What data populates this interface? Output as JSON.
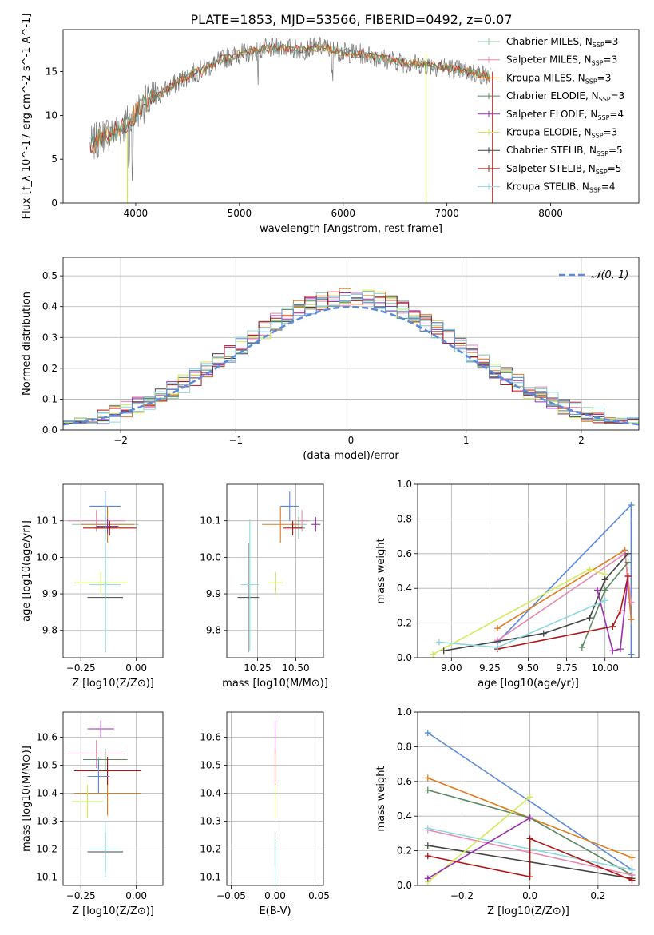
{
  "title": "PLATE=1853, MJD=53566, FIBERID=0492, z=0.07",
  "colors": {
    "Chabrier MILES": "#8fc9a8",
    "Salpeter MILES": "#e889b0",
    "Kroupa MILES": "#e07b1e",
    "Chabrier ELODIE": "#5a8a60",
    "Salpeter ELODIE": "#9b2fb0",
    "Kroupa ELODIE": "#d3ea5a",
    "Chabrier STELIB": "#444444",
    "Salpeter STELIB": "#b01515",
    "Kroupa STELIB": "#8cd8de",
    "Extra": "#5b8ad8"
  },
  "legend_labels": [
    "Chabrier MILES, N_SSP=3",
    "Salpeter MILES, N_SSP=3",
    "Kroupa MILES, N_SSP=3",
    "Chabrier ELODIE, N_SSP=3",
    "Salpeter ELODIE, N_SSP=4",
    "Kroupa ELODIE, N_SSP=3",
    "Chabrier STELIB, N_SSP=5",
    "Salpeter STELIB, N_SSP=5",
    "Kroupa STELIB, N_SSP=4"
  ],
  "chart_data": [
    {
      "id": "spectrum",
      "type": "line",
      "xlabel": "wavelength [Angstrom, rest frame]",
      "ylabel": "Flux [f_λ 10^-17 erg cm^-2 s^-1 A^-1]",
      "xlim": [
        3300,
        8850
      ],
      "ylim": [
        0,
        19.8
      ],
      "xticks": [
        4000,
        5000,
        6000,
        7000,
        8000
      ],
      "yticks": [
        0,
        5,
        10,
        15
      ],
      "legend_position": "upper right",
      "grid": false,
      "continuum_x": [
        3560,
        3700,
        3850,
        3950,
        4050,
        4300,
        4500,
        4700,
        4850,
        5000,
        5200,
        5400,
        5600,
        5800,
        6000,
        6200,
        6400,
        6600,
        6800,
        7000,
        7200,
        7400
      ],
      "continuum_y": [
        6.5,
        7.8,
        8.5,
        9.5,
        11,
        13,
        14.5,
        15.5,
        16.5,
        17,
        17.5,
        17.8,
        17.5,
        17.8,
        17.2,
        17.0,
        16.5,
        16.0,
        15.8,
        15.5,
        15.0,
        14.5
      ]
    },
    {
      "id": "residuals",
      "type": "line",
      "xlabel": "(data-model)/error",
      "ylabel": "Normed distribution",
      "xlim": [
        -2.5,
        2.5
      ],
      "ylim": [
        0,
        0.56
      ],
      "xticks": [
        -2,
        -1,
        0,
        1,
        2
      ],
      "yticks": [
        0.0,
        0.1,
        0.2,
        0.3,
        0.4,
        0.5
      ],
      "grid": true,
      "legend": "𝒩(0, 1)",
      "bins": [
        -2.5,
        2.5,
        50
      ],
      "reference_curve": "normal(0,1)"
    },
    {
      "id": "Z_vs_age",
      "type": "scatter",
      "xlabel": "Z [log10(Z/Z⊙)]",
      "ylabel": "age [log10(age/yr)]",
      "xlim": [
        -0.33,
        0.12
      ],
      "ylim": [
        9.725,
        10.2
      ],
      "xticks": [
        -0.25,
        0.0
      ],
      "yticks": [
        9.8,
        9.9,
        10.0,
        10.1
      ],
      "grid": true,
      "points": [
        {
          "model": "Chabrier MILES",
          "x": -0.14,
          "y": 10.09,
          "xerr": 0.15,
          "yerr": 0.04
        },
        {
          "model": "Salpeter MILES",
          "x": -0.18,
          "y": 10.1,
          "xerr": 0.13,
          "yerr": 0.03
        },
        {
          "model": "Kroupa MILES",
          "x": -0.13,
          "y": 10.09,
          "xerr": 0.12,
          "yerr": 0.05
        },
        {
          "model": "Chabrier ELODIE",
          "x": -0.14,
          "y": 10.08,
          "xerr": 0.05,
          "yerr": 0.03
        },
        {
          "model": "Salpeter ELODIE",
          "x": -0.13,
          "y": 10.085,
          "xerr": 0.05,
          "yerr": 0.02
        },
        {
          "model": "Kroupa ELODIE",
          "x": -0.16,
          "y": 9.93,
          "xerr": 0.12,
          "yerr": 0.03
        },
        {
          "model": "Chabrier STELIB",
          "x": -0.14,
          "y": 9.89,
          "xerr": 0.08,
          "yerr": 0.15
        },
        {
          "model": "Salpeter STELIB",
          "x": -0.12,
          "y": 10.08,
          "xerr": 0.12,
          "yerr": 0.02
        },
        {
          "model": "Kroupa STELIB",
          "x": -0.14,
          "y": 9.925,
          "xerr": 0.07,
          "yerr": 0.18
        },
        {
          "model": "Extra",
          "x": -0.14,
          "y": 10.14,
          "xerr": 0.07,
          "yerr": 0.04
        }
      ]
    },
    {
      "id": "mass_vs_age",
      "type": "scatter",
      "xlabel": "mass [log10(M/M⊙)]",
      "ylabel": "",
      "xlim": [
        10.05,
        10.68
      ],
      "ylim": [
        9.725,
        10.2
      ],
      "xticks": [
        10.25,
        10.5
      ],
      "yticks": [
        9.8,
        9.9,
        10.0,
        10.1
      ],
      "grid": true,
      "points": [
        {
          "model": "Chabrier MILES",
          "x": 10.52,
          "y": 10.09,
          "xerr": 0.05,
          "yerr": 0.04
        },
        {
          "model": "Salpeter MILES",
          "x": 10.54,
          "y": 10.1,
          "xerr": 0.05,
          "yerr": 0.03
        },
        {
          "model": "Kroupa MILES",
          "x": 10.4,
          "y": 10.09,
          "xerr": 0.12,
          "yerr": 0.05
        },
        {
          "model": "Chabrier ELODIE",
          "x": 10.52,
          "y": 10.08,
          "xerr": 0.04,
          "yerr": 0.03
        },
        {
          "model": "Salpeter ELODIE",
          "x": 10.63,
          "y": 10.09,
          "xerr": 0.03,
          "yerr": 0.02
        },
        {
          "model": "Kroupa ELODIE",
          "x": 10.37,
          "y": 9.93,
          "xerr": 0.05,
          "yerr": 0.03
        },
        {
          "model": "Chabrier STELIB",
          "x": 10.19,
          "y": 9.89,
          "xerr": 0.07,
          "yerr": 0.15
        },
        {
          "model": "Salpeter STELIB",
          "x": 10.48,
          "y": 10.08,
          "xerr": 0.06,
          "yerr": 0.02
        },
        {
          "model": "Kroupa STELIB",
          "x": 10.2,
          "y": 9.925,
          "xerr": 0.06,
          "yerr": 0.18
        },
        {
          "model": "Extra",
          "x": 10.46,
          "y": 10.14,
          "xerr": 0.06,
          "yerr": 0.04
        }
      ]
    },
    {
      "id": "age_weights",
      "type": "line",
      "xlabel": "age [log10(age/yr)]",
      "ylabel": "mass weight",
      "xlim": [
        8.78,
        10.22
      ],
      "ylim": [
        0,
        1.0
      ],
      "xticks": [
        9.0,
        9.25,
        9.5,
        9.75,
        10.0
      ],
      "yticks": [
        0.0,
        0.2,
        0.4,
        0.6,
        0.8,
        1.0
      ],
      "grid": true,
      "series": [
        {
          "model": "Extra",
          "x": [
            9.3,
            10.17,
            10.17
          ],
          "y": [
            0.09,
            0.88,
            0.02
          ]
        },
        {
          "model": "Kroupa MILES",
          "x": [
            9.3,
            10.13,
            10.17
          ],
          "y": [
            0.17,
            0.62,
            0.22
          ]
        },
        {
          "model": "Salpeter MILES",
          "x": [
            9.3,
            10.13,
            10.17
          ],
          "y": [
            0.1,
            0.6,
            0.32
          ]
        },
        {
          "model": "Kroupa ELODIE",
          "x": [
            8.88,
            9.9,
            10.0
          ],
          "y": [
            0.02,
            0.51,
            0.48
          ]
        },
        {
          "model": "Chabrier ELODIE",
          "x": [
            9.85,
            10.0,
            10.15
          ],
          "y": [
            0.06,
            0.39,
            0.55
          ]
        },
        {
          "model": "Chabrier STELIB",
          "x": [
            8.95,
            9.6,
            9.9,
            10.0,
            10.15
          ],
          "y": [
            0.04,
            0.14,
            0.23,
            0.45,
            0.6
          ]
        },
        {
          "model": "Salpeter ELODIE",
          "x": [
            9.95,
            10.05,
            10.1,
            10.15
          ],
          "y": [
            0.39,
            0.04,
            0.05,
            0.47
          ]
        },
        {
          "model": "Salpeter STELIB",
          "x": [
            9.3,
            10.05,
            10.1,
            10.15
          ],
          "y": [
            0.05,
            0.18,
            0.27,
            0.47
          ]
        },
        {
          "model": "Kroupa STELIB",
          "x": [
            8.92,
            9.3,
            10.0
          ],
          "y": [
            0.09,
            0.06,
            0.33
          ]
        }
      ]
    },
    {
      "id": "Z_vs_mass",
      "type": "scatter",
      "xlabel": "Z [log10(Z/Z⊙)]",
      "ylabel": "mass [log10(M/M⊙)]",
      "xlim": [
        -0.33,
        0.12
      ],
      "ylim": [
        10.07,
        10.69
      ],
      "xticks": [
        -0.25,
        0.0
      ],
      "yticks": [
        10.1,
        10.2,
        10.3,
        10.4,
        10.5,
        10.6
      ],
      "grid": true,
      "points": [
        {
          "model": "Chabrier MILES",
          "x": -0.17,
          "y": 10.48,
          "xerr": 0.05,
          "yerr": 0.05
        },
        {
          "model": "Salpeter MILES",
          "x": -0.18,
          "y": 10.54,
          "xerr": 0.13,
          "yerr": 0.05
        },
        {
          "model": "Kroupa MILES",
          "x": -0.13,
          "y": 10.4,
          "xerr": 0.15,
          "yerr": 0.08
        },
        {
          "model": "Chabrier ELODIE",
          "x": -0.14,
          "y": 10.52,
          "xerr": 0.1,
          "yerr": 0.04
        },
        {
          "model": "Salpeter ELODIE",
          "x": -0.16,
          "y": 10.63,
          "xerr": 0.06,
          "yerr": 0.03
        },
        {
          "model": "Kroupa ELODIE",
          "x": -0.22,
          "y": 10.37,
          "xerr": 0.07,
          "yerr": 0.06
        },
        {
          "model": "Chabrier STELIB",
          "x": -0.14,
          "y": 10.19,
          "xerr": 0.08,
          "yerr": 0.07
        },
        {
          "model": "Salpeter STELIB",
          "x": -0.13,
          "y": 10.48,
          "xerr": 0.15,
          "yerr": 0.05
        },
        {
          "model": "Kroupa STELIB",
          "x": -0.14,
          "y": 10.2,
          "xerr": 0.07,
          "yerr": 0.1
        },
        {
          "model": "Extra",
          "x": -0.17,
          "y": 10.46,
          "xerr": 0.05,
          "yerr": 0.06
        }
      ]
    },
    {
      "id": "ebv_vs_mass",
      "type": "scatter",
      "xlabel": "E(B-V)",
      "ylabel": "",
      "xlim": [
        -0.055,
        0.055
      ],
      "ylim": [
        10.07,
        10.69
      ],
      "xticks": [
        -0.05,
        0.0,
        0.05
      ],
      "yticks": [
        10.1,
        10.2,
        10.3,
        10.4,
        10.5,
        10.6
      ],
      "grid": true,
      "points": [
        {
          "model": "Salpeter ELODIE",
          "x": 0.0,
          "y": 10.6,
          "xerr": 0.0,
          "yerr": 0.06
        },
        {
          "model": "Salpeter STELIB",
          "x": 0.0,
          "y": 10.49,
          "xerr": 0.0,
          "yerr": 0.07
        },
        {
          "model": "Kroupa ELODIE",
          "x": 0.0,
          "y": 10.37,
          "xerr": 0.0,
          "yerr": 0.06
        },
        {
          "model": "Chabrier STELIB",
          "x": 0.0,
          "y": 10.2,
          "xerr": 0.0,
          "yerr": 0.06
        },
        {
          "model": "Kroupa STELIB",
          "x": 0.0,
          "y": 10.15,
          "xerr": 0.0,
          "yerr": 0.08
        }
      ]
    },
    {
      "id": "Z_weights",
      "type": "line",
      "xlabel": "Z [log10(Z/Z⊙)]",
      "ylabel": "mass weight",
      "xlim": [
        -0.33,
        0.32
      ],
      "ylim": [
        0,
        1.0
      ],
      "xticks": [
        -0.2,
        0.0,
        0.2
      ],
      "yticks": [
        0.0,
        0.2,
        0.4,
        0.6,
        0.8,
        1.0
      ],
      "grid": true,
      "series": [
        {
          "model": "Extra",
          "x": [
            -0.3,
            0.3
          ],
          "y": [
            0.88,
            0.09
          ]
        },
        {
          "model": "Kroupa MILES",
          "x": [
            -0.3,
            0.3
          ],
          "y": [
            0.62,
            0.16
          ]
        },
        {
          "model": "Chabrier ELODIE",
          "x": [
            -0.3,
            0.0,
            0.3
          ],
          "y": [
            0.55,
            0.39,
            0.06
          ]
        },
        {
          "model": "Salpeter MILES",
          "x": [
            -0.3,
            0.3
          ],
          "y": [
            0.32,
            0.06
          ]
        },
        {
          "model": "Kroupa STELIB",
          "x": [
            -0.3,
            0.3
          ],
          "y": [
            0.33,
            0.09
          ]
        },
        {
          "model": "Chabrier STELIB",
          "x": [
            -0.3,
            0.3
          ],
          "y": [
            0.23,
            0.04
          ]
        },
        {
          "model": "Kroupa ELODIE",
          "x": [
            -0.3,
            0.0
          ],
          "y": [
            0.02,
            0.51
          ]
        },
        {
          "model": "Salpeter ELODIE",
          "x": [
            -0.3,
            0.0
          ],
          "y": [
            0.04,
            0.39
          ]
        },
        {
          "model": "Salpeter STELIB",
          "x": [
            -0.3,
            0.0,
            0.0,
            0.3
          ],
          "y": [
            0.17,
            0.05,
            0.27,
            0.03
          ]
        }
      ]
    }
  ]
}
